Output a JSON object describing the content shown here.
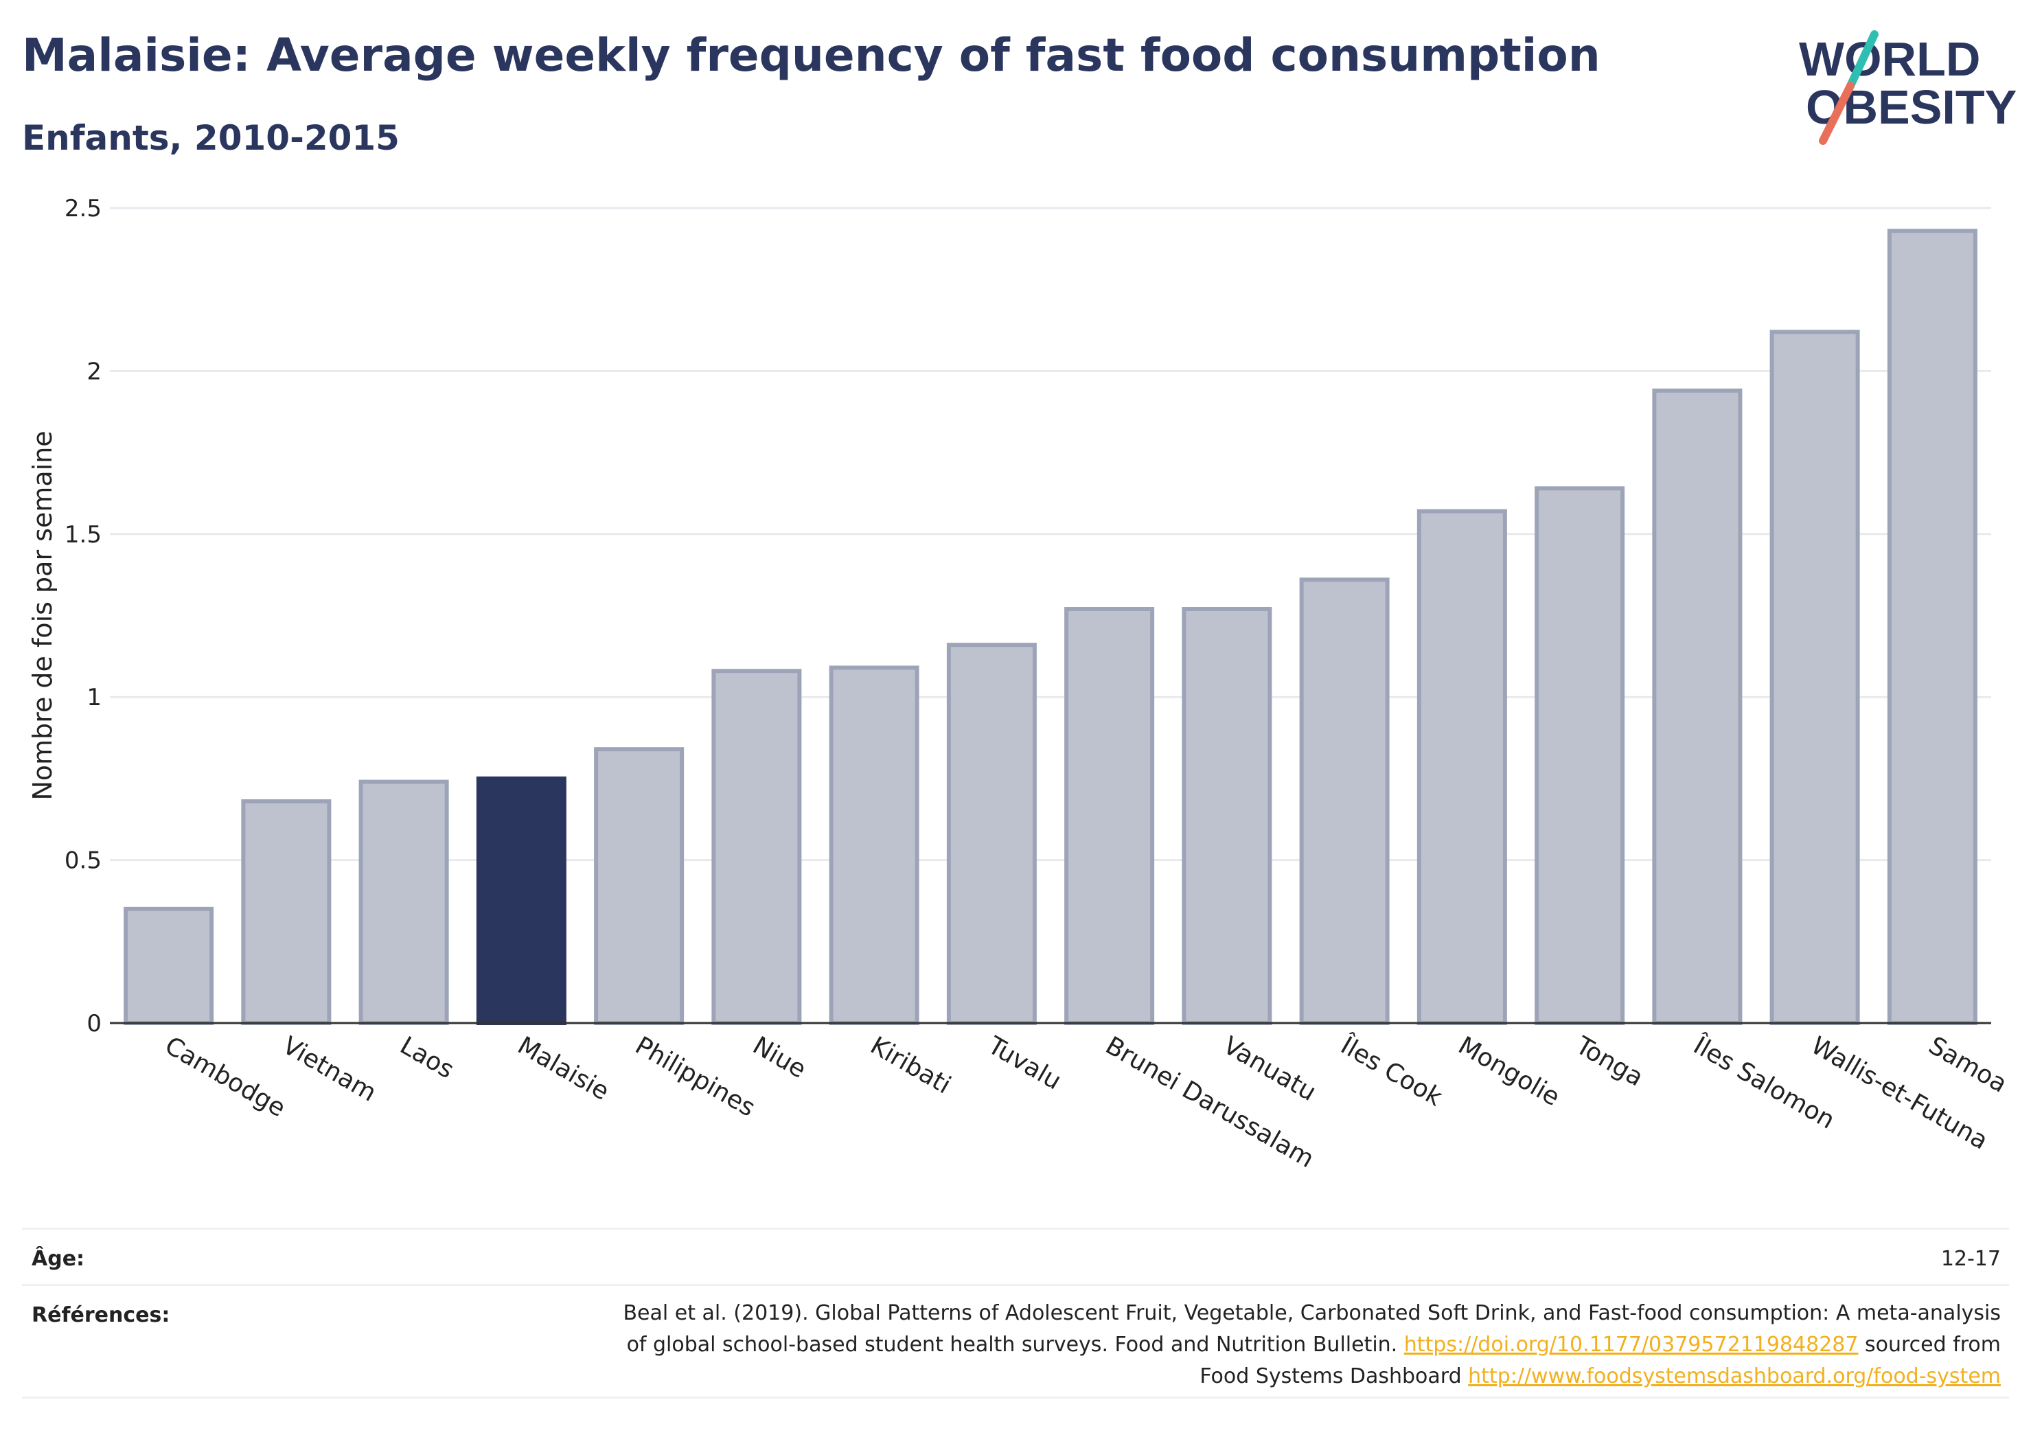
{
  "header": {
    "title": "Malaisie: Average weekly frequency of fast food consumption",
    "subtitle": "Enfants, 2010-2015"
  },
  "logo": {
    "line1": "WORLD",
    "line2": "OBESITY",
    "slash_colors": [
      "#2fbfb2",
      "#e8705a"
    ]
  },
  "chart_data": {
    "type": "bar",
    "title": "Malaisie: Average weekly frequency of fast food consumption",
    "subtitle": "Enfants, 2010-2015",
    "ylabel": "Nombre de fois par semaine",
    "xlabel": "",
    "ylim": [
      0,
      2.5
    ],
    "yticks": [
      0,
      0.5,
      1,
      1.5,
      2,
      2.5
    ],
    "ytick_labels": [
      "0",
      "0.5",
      "1",
      "1.5",
      "2",
      "2.5"
    ],
    "grid": true,
    "highlight": "Malaisie",
    "categories": [
      "Cambodge",
      "Vietnam",
      "Laos",
      "Malaisie",
      "Philippines",
      "Niue",
      "Kiribati",
      "Tuvalu",
      "Brunei Darussalam",
      "Vanuatu",
      "Îles Cook",
      "Mongolie",
      "Tonga",
      "Îles Salomon",
      "Wallis-et-Futuna",
      "Samoa"
    ],
    "values": [
      0.35,
      0.68,
      0.74,
      0.75,
      0.84,
      1.08,
      1.09,
      1.16,
      1.27,
      1.27,
      1.36,
      1.57,
      1.64,
      1.94,
      2.12,
      2.43
    ],
    "colors": {
      "bar_fill": "#bec2cf",
      "bar_stroke": "#9ea4b8",
      "highlight_fill": "#2b365e"
    }
  },
  "footer": {
    "age_label": "Âge:",
    "age_value": "12-17",
    "ref_label": "Références:",
    "ref_line1": "Beal et al. (2019). Global Patterns of Adolescent Fruit, Vegetable, Carbonated Soft Drink, and Fast-food consumption: A meta-analysis",
    "ref_line2a": "of global school-based student health surveys. Food and Nutrition Bulletin. ",
    "ref_link1": "https://doi.org/10.1177/0379572119848287",
    "ref_line2b": " sourced from",
    "ref_line3a": "Food Systems Dashboard ",
    "ref_link2": "http://www.foodsystemsdashboard.org/food-system"
  }
}
